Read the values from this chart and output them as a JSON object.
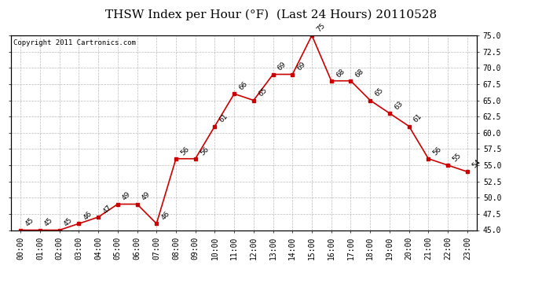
{
  "title": "THSW Index per Hour (°F)  (Last 24 Hours) 20110528",
  "copyright": "Copyright 2011 Cartronics.com",
  "hours": [
    "00:00",
    "01:00",
    "02:00",
    "03:00",
    "04:00",
    "05:00",
    "06:00",
    "07:00",
    "08:00",
    "09:00",
    "10:00",
    "11:00",
    "12:00",
    "13:00",
    "14:00",
    "15:00",
    "16:00",
    "17:00",
    "18:00",
    "19:00",
    "20:00",
    "21:00",
    "22:00",
    "23:00"
  ],
  "values": [
    45,
    45,
    45,
    46,
    47,
    49,
    49,
    46,
    56,
    56,
    61,
    66,
    65,
    69,
    69,
    75,
    68,
    68,
    65,
    63,
    61,
    56,
    55,
    54
  ],
  "ylim": [
    45.0,
    75.0
  ],
  "yticks": [
    45.0,
    47.5,
    50.0,
    52.5,
    55.0,
    57.5,
    60.0,
    62.5,
    65.0,
    67.5,
    70.0,
    72.5,
    75.0
  ],
  "line_color": "#cc0000",
  "marker_color": "#cc0000",
  "bg_color": "#ffffff",
  "grid_color": "#bbbbbb",
  "title_fontsize": 11,
  "label_fontsize": 7,
  "annot_fontsize": 6.5,
  "copyright_fontsize": 6.5
}
